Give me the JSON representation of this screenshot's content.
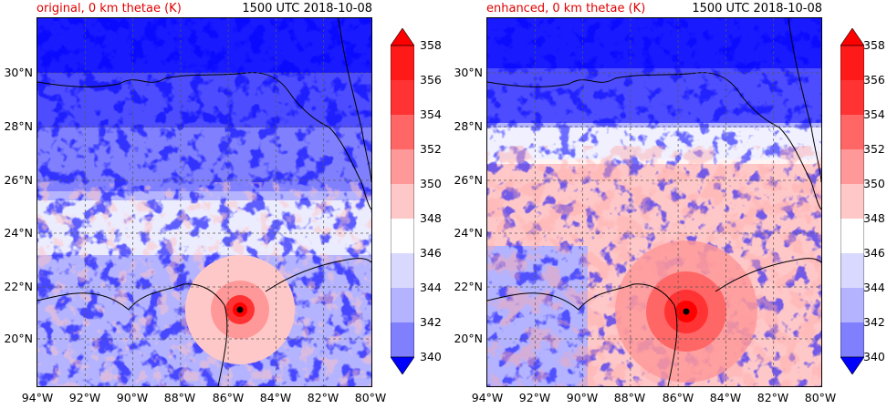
{
  "panels": [
    {
      "title": "original, 0 km thetae (K)",
      "time": "1500 UTC 2018-10-08",
      "variant": "original"
    },
    {
      "title": "enhanced, 0 km thetae (K)",
      "time": "1500 UTC 2018-10-08",
      "variant": "enhanced"
    }
  ],
  "map": {
    "lon_range": [
      -94,
      -80
    ],
    "lat_range": [
      18,
      32
    ],
    "lat_labels": [
      "30°N",
      "28°N",
      "26°N",
      "24°N",
      "22°N",
      "20°N"
    ],
    "lon_labels": [
      "94°W",
      "92°W",
      "90°W",
      "88°W",
      "86°W",
      "84°W",
      "82°W",
      "80°W"
    ],
    "gridlines": true,
    "storm_marker": "black-dot"
  },
  "colorbar": {
    "levels": [
      "340",
      "342",
      "344",
      "346",
      "348",
      "350",
      "352",
      "354",
      "356",
      "358"
    ],
    "colors": [
      "#1a1aff",
      "#4d4dff",
      "#8080ff",
      "#b3b3ff",
      "#d9d9ff",
      "#ffffff",
      "#ffc8c8",
      "#ff9999",
      "#ff6666",
      "#ff3333",
      "#ff1a1a"
    ],
    "extend": "both",
    "under_color": "#0000ff",
    "over_color": "#ff0000"
  }
}
